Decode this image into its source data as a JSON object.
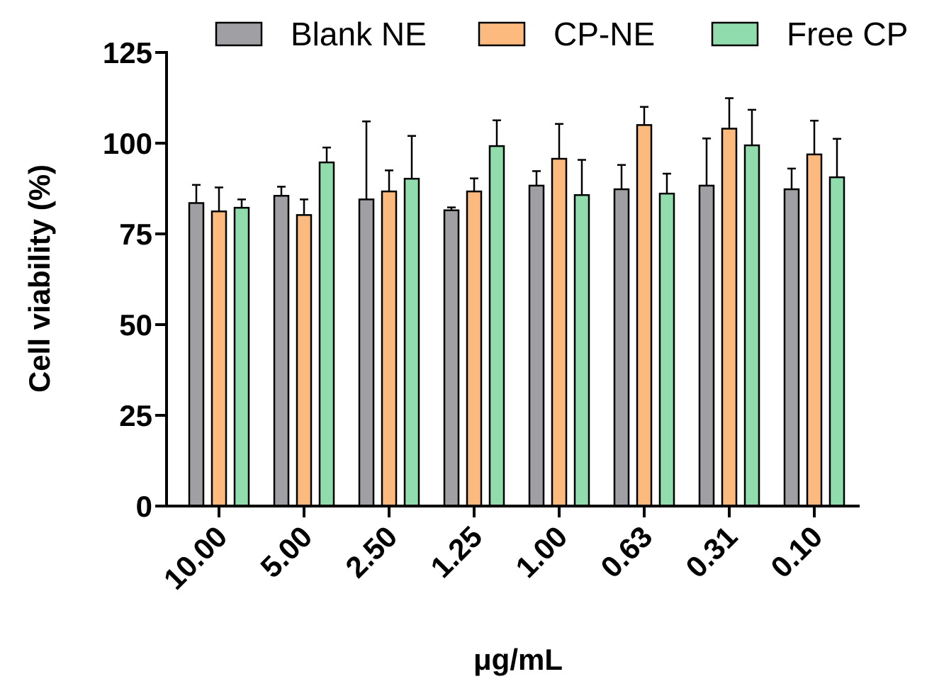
{
  "chart_data": {
    "type": "bar",
    "categories": [
      "10.00",
      "5.00",
      "2.50",
      "1.25",
      "1.00",
      "0.63",
      "0.31",
      "0.10"
    ],
    "series": [
      {
        "name": "Blank NE",
        "color": "#A09FA4",
        "values": [
          83.5,
          85.5,
          84.5,
          81.5,
          88.3,
          87.3,
          88.3,
          87.3
        ],
        "errors": [
          5.0,
          2.5,
          21.5,
          0.8,
          4.0,
          6.7,
          13.0,
          5.7
        ]
      },
      {
        "name": "CP-NE",
        "color": "#FCBA7E",
        "values": [
          81.2,
          80.2,
          86.7,
          86.7,
          95.7,
          105.0,
          104.0,
          96.9
        ],
        "errors": [
          6.6,
          4.3,
          5.8,
          3.6,
          9.6,
          5.0,
          8.4,
          9.3
        ]
      },
      {
        "name": "Free CP",
        "color": "#90DCAC",
        "values": [
          82.2,
          94.7,
          90.2,
          99.2,
          85.7,
          86.1,
          99.4,
          90.6
        ],
        "errors": [
          2.3,
          4.1,
          11.8,
          7.1,
          9.7,
          5.5,
          9.8,
          10.6
        ]
      }
    ],
    "title": "",
    "xlabel": "μg/mL",
    "ylabel": "Cell viability (%)",
    "ylim": [
      0,
      125
    ],
    "yticks": [
      "0",
      "25",
      "50",
      "75",
      "100",
      "125"
    ],
    "grid": false,
    "legend_position": "top"
  }
}
